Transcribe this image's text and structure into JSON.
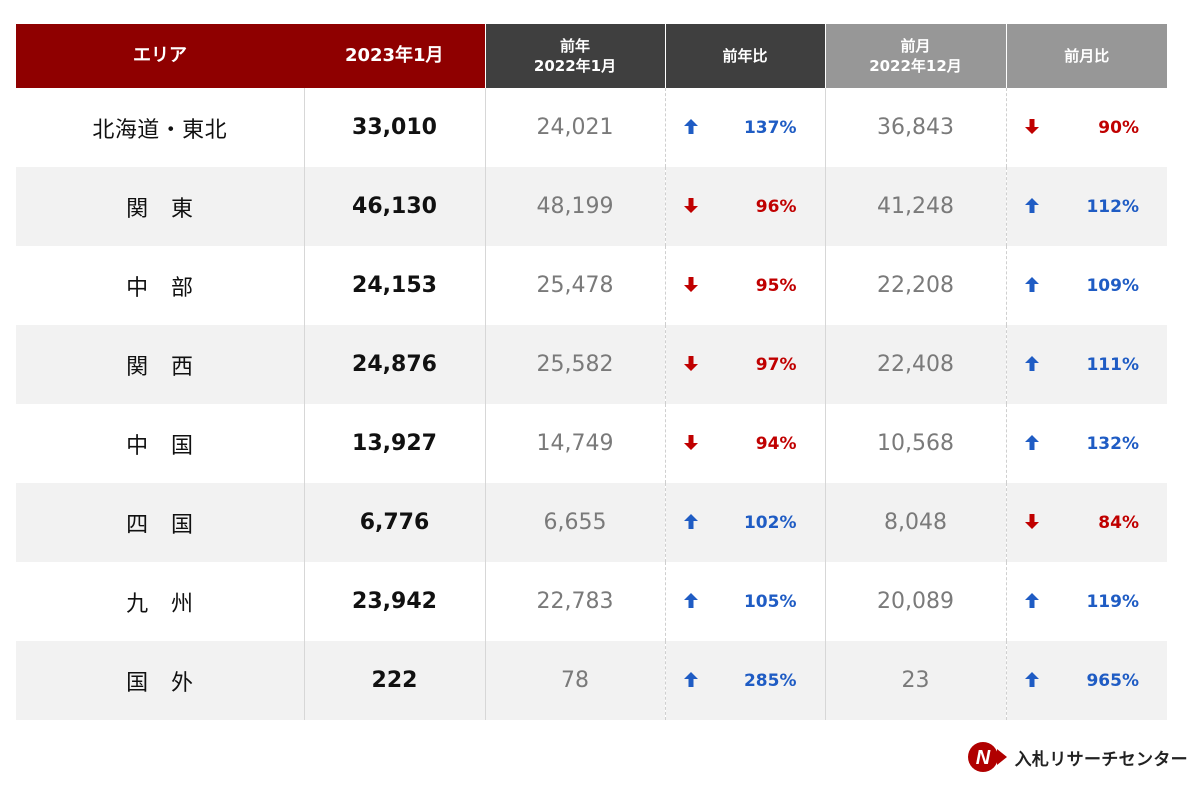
{
  "chart_data": {
    "type": "table",
    "columns": [
      {
        "label": "エリア"
      },
      {
        "label": "2023年1月"
      },
      {
        "label": "前年",
        "sub": "2022年1月"
      },
      {
        "label": "前年比"
      },
      {
        "label": "前月",
        "sub": "2022年12月"
      },
      {
        "label": "前月比"
      }
    ],
    "rows": [
      {
        "area": "北海道・東北",
        "current": "33,010",
        "prev_year": "24,021",
        "yoy": "137%",
        "yoy_dir": "up",
        "prev_month": "36,843",
        "mom": "90%",
        "mom_dir": "down"
      },
      {
        "area": "関　東",
        "current": "46,130",
        "prev_year": "48,199",
        "yoy": "96%",
        "yoy_dir": "down",
        "prev_month": "41,248",
        "mom": "112%",
        "mom_dir": "up"
      },
      {
        "area": "中　部",
        "current": "24,153",
        "prev_year": "25,478",
        "yoy": "95%",
        "yoy_dir": "down",
        "prev_month": "22,208",
        "mom": "109%",
        "mom_dir": "up"
      },
      {
        "area": "関　西",
        "current": "24,876",
        "prev_year": "25,582",
        "yoy": "97%",
        "yoy_dir": "down",
        "prev_month": "22,408",
        "mom": "111%",
        "mom_dir": "up"
      },
      {
        "area": "中　国",
        "current": "13,927",
        "prev_year": "14,749",
        "yoy": "94%",
        "yoy_dir": "down",
        "prev_month": "10,568",
        "mom": "132%",
        "mom_dir": "up"
      },
      {
        "area": "四　国",
        "current": "6,776",
        "prev_year": "6,655",
        "yoy": "102%",
        "yoy_dir": "up",
        "prev_month": "8,048",
        "mom": "84%",
        "mom_dir": "down"
      },
      {
        "area": "九　州",
        "current": "23,942",
        "prev_year": "22,783",
        "yoy": "105%",
        "yoy_dir": "up",
        "prev_month": "20,089",
        "mom": "119%",
        "mom_dir": "up"
      },
      {
        "area": "国　外",
        "current": "222",
        "prev_year": "78",
        "yoy": "285%",
        "yoy_dir": "up",
        "prev_month": "23",
        "mom": "965%",
        "mom_dir": "up"
      }
    ]
  },
  "colors": {
    "header_primary": "#8f0000",
    "header_prev_year": "#3f3f3f",
    "header_prev_month": "#979797",
    "up": "#1f5cc4",
    "down": "#c00000",
    "alt_row": "#f2f2f2"
  },
  "icons": {
    "up": "up-arrow-icon",
    "down": "down-arrow-icon"
  },
  "logo": {
    "text": "入札リサーチセンター",
    "mark": "N"
  }
}
